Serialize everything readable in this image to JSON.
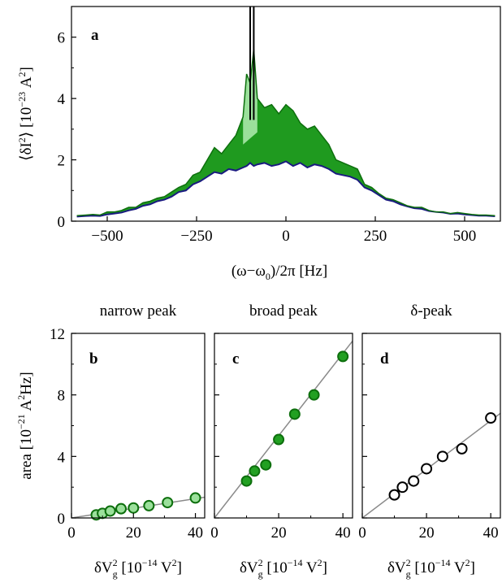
{
  "chart_data": [
    {
      "panel": "a",
      "type": "area",
      "title": "",
      "xlabel": "(ω−ω0)/2π [Hz]",
      "ylabel": "⟨δI2⟩ [10−23 A2]",
      "xlim": [
        -600,
        600
      ],
      "ylim": [
        0,
        7
      ],
      "x_ticks": [
        "−500",
        "−250",
        "0",
        "250",
        "500"
      ],
      "x_tick_values": [
        -500,
        -250,
        0,
        250,
        500
      ],
      "y_ticks": [
        "0",
        "2",
        "4",
        "6"
      ],
      "y_tick_values": [
        0,
        2,
        4,
        6
      ],
      "grid": false,
      "x": [
        -585,
        -560,
        -540,
        -520,
        -500,
        -480,
        -460,
        -440,
        -420,
        -400,
        -380,
        -360,
        -340,
        -320,
        -300,
        -280,
        -260,
        -240,
        -220,
        -200,
        -180,
        -160,
        -140,
        -120,
        -110,
        -100,
        -90,
        -80,
        -60,
        -40,
        -20,
        0,
        20,
        40,
        60,
        80,
        100,
        120,
        140,
        160,
        180,
        200,
        220,
        240,
        260,
        280,
        300,
        320,
        340,
        360,
        380,
        400,
        420,
        440,
        460,
        480,
        500,
        520,
        540,
        560,
        585
      ],
      "series": [
        {
          "role": "total-spectrum",
          "color": "#1f9a1f",
          "line_color": "#0d6f0d",
          "values": [
            0.18,
            0.2,
            0.22,
            0.2,
            0.3,
            0.3,
            0.35,
            0.45,
            0.45,
            0.6,
            0.65,
            0.75,
            0.8,
            0.95,
            1.1,
            1.2,
            1.5,
            1.6,
            2.0,
            2.4,
            2.2,
            2.5,
            2.8,
            3.4,
            4.8,
            4.5,
            5.6,
            4.0,
            3.7,
            3.8,
            3.5,
            3.8,
            3.6,
            3.2,
            3.0,
            3.1,
            2.8,
            2.5,
            2.0,
            1.9,
            1.8,
            1.7,
            1.2,
            1.1,
            0.9,
            0.75,
            0.7,
            0.6,
            0.5,
            0.45,
            0.45,
            0.35,
            0.3,
            0.3,
            0.25,
            0.28,
            0.25,
            0.22,
            0.2,
            0.2,
            0.18
          ]
        },
        {
          "role": "background",
          "color": "#1a1a80",
          "values": [
            0.15,
            0.17,
            0.18,
            0.17,
            0.22,
            0.25,
            0.28,
            0.35,
            0.4,
            0.5,
            0.55,
            0.65,
            0.7,
            0.8,
            0.95,
            1.0,
            1.2,
            1.3,
            1.45,
            1.6,
            1.55,
            1.7,
            1.65,
            1.75,
            1.8,
            1.9,
            1.8,
            1.85,
            1.9,
            1.8,
            1.85,
            1.95,
            1.8,
            1.9,
            1.75,
            1.85,
            1.8,
            1.7,
            1.55,
            1.5,
            1.45,
            1.35,
            1.1,
            1.0,
            0.85,
            0.7,
            0.65,
            0.55,
            0.48,
            0.42,
            0.4,
            0.33,
            0.3,
            0.28,
            0.24,
            0.25,
            0.22,
            0.2,
            0.18,
            0.18,
            0.16
          ]
        },
        {
          "role": "narrow-peak",
          "color": "#9be09b",
          "x": [
            -120,
            -110,
            -100,
            -90,
            -80
          ],
          "upper": [
            3.4,
            4.8,
            4.5,
            5.6,
            4.0
          ],
          "lower": [
            2.5,
            2.6,
            2.7,
            2.8,
            2.9
          ]
        },
        {
          "role": "delta-peak",
          "color": "#000000",
          "x": [
            -100,
            -90
          ],
          "values": [
            7,
            7
          ]
        }
      ]
    },
    {
      "panel": "b",
      "type": "scatter",
      "title": "narrow peak",
      "xlabel": "δVg2 [10−14 V2]",
      "ylabel": "area [10−21 A2Hz]",
      "xlim": [
        0,
        43
      ],
      "ylim": [
        0,
        12
      ],
      "x_ticks": [
        "0",
        "20",
        "40"
      ],
      "x_tick_values": [
        0,
        20,
        40
      ],
      "y_ticks": [
        "0",
        "4",
        "8",
        "12"
      ],
      "y_tick_values": [
        0,
        4,
        8,
        12
      ],
      "marker": "filled-light",
      "color": "#9be09b",
      "x": [
        8,
        10,
        12.5,
        16,
        20,
        25,
        31,
        40
      ],
      "y": [
        0.2,
        0.3,
        0.45,
        0.6,
        0.65,
        0.8,
        1.0,
        1.3
      ],
      "fit": [
        [
          0,
          0
        ],
        [
          43,
          1.35
        ]
      ]
    },
    {
      "panel": "c",
      "type": "scatter",
      "title": "broad peak",
      "xlabel": "δVg2 [10−14 V2]",
      "ylabel": "",
      "xlim": [
        0,
        43
      ],
      "ylim": [
        0,
        12
      ],
      "x_ticks": [
        "0",
        "20",
        "40"
      ],
      "x_tick_values": [
        0,
        20,
        40
      ],
      "marker": "filled-dark",
      "color": "#22a022",
      "x": [
        10,
        12.5,
        16,
        20,
        25,
        31,
        40
      ],
      "y": [
        2.4,
        3.05,
        3.45,
        5.1,
        6.75,
        8.0,
        10.5
      ],
      "fit": [
        [
          0,
          0
        ],
        [
          43,
          11.5
        ]
      ]
    },
    {
      "panel": "d",
      "type": "scatter",
      "title": "δ-peak",
      "xlabel": "δVg2 [10−14 V2]",
      "ylabel": "",
      "xlim": [
        0,
        43
      ],
      "ylim": [
        0,
        12
      ],
      "x_ticks": [
        "0",
        "20",
        "40"
      ],
      "x_tick_values": [
        0,
        20,
        40
      ],
      "marker": "open",
      "color": "#000000",
      "x": [
        10,
        12.5,
        16,
        20,
        25,
        31,
        40
      ],
      "y": [
        1.5,
        2.0,
        2.4,
        3.2,
        4.0,
        4.5,
        6.5
      ],
      "fit": [
        [
          0,
          0
        ],
        [
          43,
          6.8
        ]
      ]
    }
  ],
  "figure": {
    "panel_a_letter": "a",
    "panel_b_letter": "b",
    "panel_c_letter": "c",
    "panel_d_letter": "d",
    "colors": {
      "axis": "#000000",
      "fit_line": "#8a8a8a",
      "marker_edge": "#0d6f0d"
    }
  }
}
